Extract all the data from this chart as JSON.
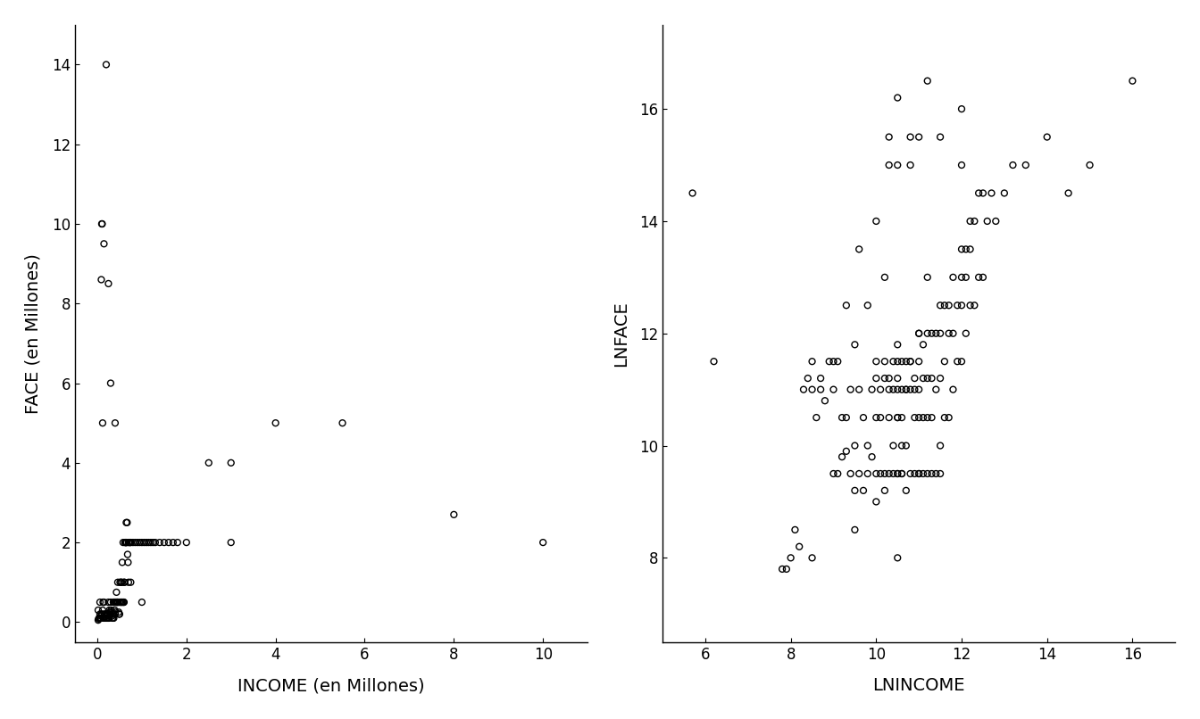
{
  "left_xlabel": "INCOME (en Millones)",
  "left_ylabel": "FACE (en Millones)",
  "right_xlabel": "LNINCOME",
  "right_ylabel": "LNFACE",
  "left_xlim": [
    -0.5,
    11
  ],
  "left_ylim": [
    -0.5,
    15
  ],
  "left_xticks": [
    0,
    2,
    4,
    6,
    8,
    10
  ],
  "left_yticks": [
    0,
    2,
    4,
    6,
    8,
    10,
    12,
    14
  ],
  "right_xlim": [
    5,
    17
  ],
  "right_ylim": [
    6.5,
    17.5
  ],
  "right_xticks": [
    6,
    8,
    10,
    12,
    14,
    16
  ],
  "right_yticks": [
    8,
    10,
    12,
    14,
    16
  ],
  "marker_size": 7,
  "marker_facecolor": "none",
  "marker_edgecolor": "black",
  "marker_linewidth": 1.0,
  "left_income": [
    0.02,
    0.03,
    0.05,
    0.08,
    0.1,
    0.1,
    0.12,
    0.12,
    0.13,
    0.14,
    0.15,
    0.15,
    0.16,
    0.17,
    0.18,
    0.19,
    0.2,
    0.2,
    0.21,
    0.22,
    0.23,
    0.24,
    0.25,
    0.25,
    0.26,
    0.26,
    0.27,
    0.28,
    0.29,
    0.3,
    0.3,
    0.31,
    0.32,
    0.33,
    0.34,
    0.35,
    0.35,
    0.36,
    0.37,
    0.38,
    0.39,
    0.4,
    0.4,
    0.41,
    0.42,
    0.43,
    0.44,
    0.45,
    0.45,
    0.46,
    0.47,
    0.48,
    0.49,
    0.5,
    0.5,
    0.51,
    0.52,
    0.53,
    0.54,
    0.55,
    0.55,
    0.56,
    0.57,
    0.58,
    0.59,
    0.6,
    0.6,
    0.61,
    0.62,
    0.63,
    0.64,
    0.65,
    0.65,
    0.66,
    0.67,
    0.68,
    0.69,
    0.7,
    0.7,
    0.72,
    0.74,
    0.75,
    0.75,
    0.8,
    0.85,
    0.9,
    0.95,
    1.0,
    1.0,
    1.05,
    1.1,
    1.15,
    1.2,
    1.25,
    1.3,
    1.4,
    1.5,
    1.6,
    1.7,
    1.8,
    2.0,
    2.5,
    3.0,
    3.0,
    4.0,
    5.5,
    8.0,
    10.0,
    0.02,
    0.04,
    0.06,
    0.06,
    0.07,
    0.08,
    0.09,
    0.1,
    0.11,
    0.15,
    0.2,
    0.25,
    0.3,
    0.35,
    0.4
  ],
  "left_face": [
    0.05,
    0.08,
    0.1,
    0.15,
    0.2,
    0.2,
    0.3,
    5.0,
    0.5,
    0.1,
    0.1,
    0.5,
    0.2,
    0.2,
    0.1,
    0.15,
    0.1,
    0.2,
    0.2,
    0.1,
    0.1,
    0.2,
    0.2,
    0.5,
    0.1,
    0.1,
    0.3,
    0.25,
    0.2,
    0.2,
    0.5,
    0.3,
    0.25,
    0.15,
    0.1,
    0.2,
    0.2,
    0.5,
    0.1,
    0.5,
    0.3,
    0.5,
    5.0,
    0.25,
    0.5,
    0.75,
    0.5,
    0.5,
    0.5,
    1.0,
    0.5,
    0.25,
    0.2,
    0.2,
    0.5,
    1.0,
    0.5,
    1.0,
    0.5,
    0.5,
    1.0,
    1.5,
    0.5,
    2.0,
    0.5,
    1.0,
    0.5,
    1.0,
    2.0,
    2.0,
    2.0,
    2.0,
    2.5,
    2.0,
    2.5,
    1.7,
    1.5,
    2.0,
    1.0,
    2.0,
    2.0,
    1.0,
    2.0,
    2.0,
    2.0,
    2.0,
    2.0,
    2.0,
    0.5,
    2.0,
    2.0,
    2.0,
    2.0,
    2.0,
    2.0,
    2.0,
    2.0,
    2.0,
    2.0,
    2.0,
    2.0,
    4.0,
    4.0,
    2.0,
    5.0,
    5.0,
    2.7,
    2.0,
    0.3,
    0.1,
    0.2,
    0.5,
    0.1,
    0.1,
    8.6,
    10.0,
    10.0,
    9.5,
    14.0,
    8.5,
    6.0,
    0.1,
    0.2
  ],
  "right_lnincome": [
    5.7,
    6.2,
    7.8,
    8.0,
    8.1,
    8.2,
    8.3,
    8.4,
    8.5,
    8.5,
    8.6,
    8.7,
    8.7,
    8.8,
    8.9,
    9.0,
    9.0,
    9.1,
    9.1,
    9.2,
    9.2,
    9.3,
    9.3,
    9.4,
    9.4,
    9.5,
    9.5,
    9.6,
    9.6,
    9.7,
    9.7,
    9.8,
    9.8,
    9.9,
    9.9,
    10.0,
    10.0,
    10.0,
    10.0,
    10.1,
    10.1,
    10.1,
    10.2,
    10.2,
    10.2,
    10.2,
    10.3,
    10.3,
    10.3,
    10.3,
    10.4,
    10.4,
    10.4,
    10.4,
    10.5,
    10.5,
    10.5,
    10.5,
    10.6,
    10.6,
    10.6,
    10.6,
    10.7,
    10.7,
    10.7,
    10.7,
    10.8,
    10.8,
    10.8,
    10.9,
    10.9,
    10.9,
    10.9,
    11.0,
    11.0,
    11.0,
    11.0,
    11.0,
    11.1,
    11.1,
    11.1,
    11.1,
    11.2,
    11.2,
    11.2,
    11.2,
    11.3,
    11.3,
    11.3,
    11.3,
    11.4,
    11.4,
    11.4,
    11.5,
    11.5,
    11.5,
    11.5,
    11.6,
    11.6,
    11.6,
    11.7,
    11.7,
    11.7,
    11.8,
    11.8,
    11.8,
    11.9,
    11.9,
    12.0,
    12.0,
    12.0,
    12.0,
    12.1,
    12.1,
    12.1,
    12.2,
    12.2,
    12.2,
    12.3,
    12.3,
    12.4,
    12.4,
    12.5,
    12.5,
    12.6,
    12.7,
    12.8,
    13.0,
    13.2,
    13.5,
    14.0,
    14.5,
    15.0,
    16.0,
    9.5,
    9.8,
    10.2,
    10.5,
    10.5,
    10.5,
    10.5,
    10.6,
    10.6,
    10.7,
    10.8,
    11.0,
    11.2,
    12.0,
    9.0,
    9.3,
    9.6,
    10.0,
    10.3,
    10.5,
    10.8,
    11.0,
    11.5,
    12.0,
    7.9,
    8.5,
    9.5,
    10.0,
    10.5,
    11.0,
    11.5,
    10.3,
    10.5,
    10.8,
    11.2
  ],
  "right_lnface": [
    14.5,
    11.5,
    7.8,
    8.0,
    8.5,
    8.2,
    11.0,
    11.2,
    11.0,
    11.5,
    10.5,
    11.0,
    11.2,
    10.8,
    11.5,
    9.5,
    11.0,
    9.5,
    11.5,
    9.8,
    10.5,
    9.9,
    10.5,
    9.5,
    11.0,
    9.2,
    10.0,
    9.5,
    11.0,
    9.2,
    10.5,
    9.5,
    10.0,
    9.8,
    11.0,
    9.5,
    10.5,
    11.2,
    11.5,
    9.5,
    10.5,
    11.0,
    9.2,
    11.2,
    11.5,
    9.5,
    9.5,
    10.5,
    11.0,
    11.2,
    9.5,
    10.0,
    11.0,
    11.5,
    9.5,
    10.5,
    11.0,
    11.5,
    9.5,
    10.0,
    11.0,
    11.5,
    9.2,
    10.0,
    11.0,
    11.5,
    9.5,
    11.0,
    11.5,
    9.5,
    10.5,
    11.0,
    11.2,
    9.5,
    10.5,
    11.0,
    11.5,
    12.0,
    9.5,
    10.5,
    11.2,
    11.8,
    9.5,
    10.5,
    11.2,
    12.0,
    9.5,
    10.5,
    11.2,
    12.0,
    9.5,
    11.0,
    12.0,
    10.0,
    11.2,
    12.0,
    12.5,
    10.5,
    11.5,
    12.5,
    10.5,
    12.0,
    12.5,
    11.0,
    12.0,
    13.0,
    11.5,
    12.5,
    11.5,
    12.5,
    13.0,
    13.5,
    12.0,
    13.0,
    13.5,
    12.5,
    13.5,
    14.0,
    12.5,
    14.0,
    13.0,
    14.5,
    13.0,
    14.5,
    14.0,
    14.5,
    14.0,
    14.5,
    15.0,
    15.0,
    15.5,
    14.5,
    15.0,
    16.5,
    11.8,
    12.5,
    13.0,
    9.5,
    10.5,
    11.2,
    11.8,
    9.5,
    10.5,
    11.0,
    11.5,
    12.0,
    13.0,
    15.0,
    11.5,
    12.5,
    13.5,
    14.0,
    15.0,
    15.0,
    15.0,
    15.5,
    15.5,
    16.0,
    7.8,
    8.0,
    8.5,
    9.0,
    8.0,
    9.5,
    9.5,
    15.5,
    16.2,
    15.5,
    16.5
  ]
}
